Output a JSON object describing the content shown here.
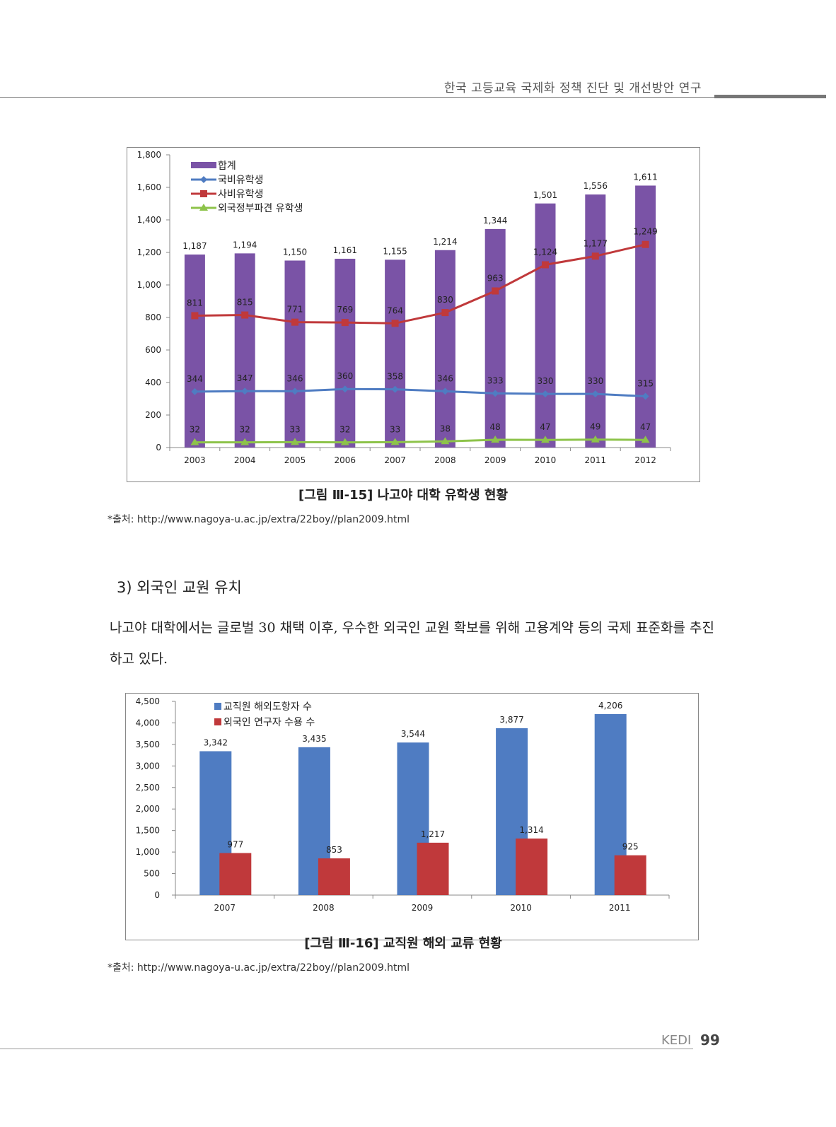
{
  "header": {
    "title": "한국 고등교육 국제화 정책 진단 및 개선방안 연구"
  },
  "figure1": {
    "caption": "[그림 Ⅲ-15] 나고야 대학 유학생 현황",
    "source": "*출처: http://www.nagoya-u.ac.jp/extra/22boy//plan2009.html"
  },
  "section": {
    "heading": "3) 외국인 교원 유치",
    "body": "나고야 대학에서는 글로벌 30 채택 이후, 우수한 외국인 교원 확보를 위해 고용계약 등의 국제 표준화를 추진하고 있다."
  },
  "figure2": {
    "caption": "[그림 Ⅲ-16] 교직원 해외 교류 현황",
    "source": "*출처: http://www.nagoya-u.ac.jp/extra/22boy//plan2009.html"
  },
  "footer": {
    "brand": "KEDI",
    "page": "99"
  },
  "chart_data": [
    {
      "type": "bar",
      "categories": [
        "2003",
        "2004",
        "2005",
        "2006",
        "2007",
        "2008",
        "2009",
        "2010",
        "2011",
        "2012"
      ],
      "ylim": [
        0,
        1800
      ],
      "yticks": [
        0,
        200,
        400,
        600,
        800,
        1000,
        1200,
        1400,
        1600,
        1800
      ],
      "legend_position": "top-left",
      "series": [
        {
          "name": "합계",
          "kind": "bar",
          "color": "#7a53a6",
          "values": [
            1187,
            1194,
            1150,
            1161,
            1155,
            1214,
            1344,
            1501,
            1556,
            1611
          ],
          "labels": [
            "1,187",
            "1,194",
            "1,150",
            "1,161",
            "1,155",
            "1,214",
            "1,344",
            "1,501",
            "1,556",
            "1,611"
          ]
        },
        {
          "name": "국비유학생",
          "kind": "line",
          "marker": "diamond",
          "color": "#4f7cc2",
          "values": [
            344,
            347,
            346,
            360,
            358,
            346,
            333,
            330,
            330,
            315
          ],
          "labels": [
            "344",
            "347",
            "346",
            "360",
            "358",
            "346",
            "333",
            "330",
            "330",
            "315"
          ]
        },
        {
          "name": "사비유학생",
          "kind": "line",
          "marker": "square",
          "color": "#c0393b",
          "values": [
            811,
            815,
            771,
            769,
            764,
            830,
            963,
            1124,
            1177,
            1249
          ],
          "labels": [
            "811",
            "815",
            "771",
            "769",
            "764",
            "830",
            "963",
            "1,124",
            "1,177",
            "1,249"
          ]
        },
        {
          "name": "외국정부파견 유학생",
          "kind": "line",
          "marker": "triangle",
          "color": "#8dc34a",
          "values": [
            32,
            32,
            33,
            32,
            33,
            38,
            48,
            47,
            49,
            47
          ],
          "labels": [
            "32",
            "32",
            "33",
            "32",
            "33",
            "38",
            "48",
            "47",
            "49",
            "47"
          ]
        }
      ]
    },
    {
      "type": "bar",
      "categories": [
        "2007",
        "2008",
        "2009",
        "2010",
        "2011"
      ],
      "ylim": [
        0,
        4500
      ],
      "yticks": [
        0,
        500,
        1000,
        1500,
        2000,
        2500,
        3000,
        3500,
        4000,
        4500
      ],
      "legend_position": "top-left",
      "series": [
        {
          "name": "교직원 해외도항자 수",
          "color": "#4f7cc2",
          "values": [
            3342,
            3435,
            3544,
            3877,
            4206
          ],
          "labels": [
            "3,342",
            "3,435",
            "3,544",
            "3,877",
            "4,206"
          ]
        },
        {
          "name": "외국인 연구자 수용 수",
          "color": "#c0393b",
          "values": [
            977,
            853,
            1217,
            1314,
            925
          ],
          "labels": [
            "977",
            "853",
            "1,217",
            "1,314",
            "925"
          ]
        }
      ]
    }
  ]
}
